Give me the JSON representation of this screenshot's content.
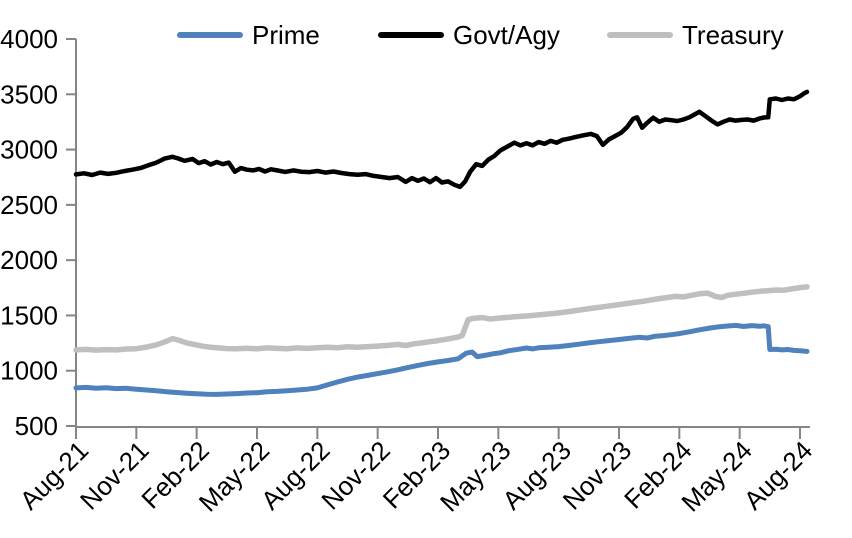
{
  "legend": {
    "items": [
      {
        "label": "Prime",
        "color": "#4F81BD"
      },
      {
        "label": "Govt/Agy",
        "color": "#000000"
      },
      {
        "label": "Treasury",
        "color": "#BFBFBF"
      }
    ]
  },
  "chart_data": {
    "type": "line",
    "title": "",
    "xlabel": "",
    "ylabel": "",
    "x_unit": "months since Aug-2021",
    "x_tick_positions": [
      0,
      3,
      6,
      9,
      12,
      15,
      18,
      21,
      24,
      27,
      30,
      33,
      36
    ],
    "x_tick_labels": [
      "Aug-21",
      "Nov-21",
      "Feb-22",
      "May-22",
      "Aug-22",
      "Nov-22",
      "Feb-23",
      "May-23",
      "Aug-23",
      "Nov-23",
      "Feb-24",
      "May-24",
      "Aug-24"
    ],
    "ylim": [
      500,
      4000
    ],
    "y_ticks": [
      500,
      1000,
      1500,
      2000,
      2500,
      3000,
      3500,
      4000
    ],
    "grid": false,
    "legend_position": "top",
    "axis_color": "#858585",
    "series": [
      {
        "name": "Treasury",
        "color": "#BFBFBF",
        "width": 5.5,
        "points": [
          [
            0,
            1188
          ],
          [
            0.5,
            1193
          ],
          [
            1,
            1186
          ],
          [
            1.5,
            1191
          ],
          [
            2,
            1188
          ],
          [
            2.5,
            1196
          ],
          [
            3,
            1199
          ],
          [
            3.5,
            1214
          ],
          [
            4,
            1234
          ],
          [
            4.5,
            1266
          ],
          [
            4.8,
            1290
          ],
          [
            5.1,
            1276
          ],
          [
            5.5,
            1252
          ],
          [
            5.9,
            1236
          ],
          [
            6.3,
            1222
          ],
          [
            6.7,
            1212
          ],
          [
            7.1,
            1206
          ],
          [
            7.5,
            1200
          ],
          [
            8,
            1198
          ],
          [
            8.5,
            1203
          ],
          [
            9,
            1198
          ],
          [
            9.5,
            1206
          ],
          [
            10,
            1202
          ],
          [
            10.5,
            1198
          ],
          [
            11,
            1206
          ],
          [
            11.5,
            1202
          ],
          [
            12,
            1208
          ],
          [
            12.5,
            1213
          ],
          [
            13,
            1208
          ],
          [
            13.5,
            1216
          ],
          [
            14,
            1212
          ],
          [
            14.5,
            1218
          ],
          [
            15,
            1223
          ],
          [
            15.5,
            1229
          ],
          [
            16,
            1238
          ],
          [
            16.4,
            1228
          ],
          [
            16.8,
            1243
          ],
          [
            17.2,
            1252
          ],
          [
            17.6,
            1262
          ],
          [
            18,
            1272
          ],
          [
            18.5,
            1288
          ],
          [
            19,
            1305
          ],
          [
            19.2,
            1318
          ],
          [
            19.5,
            1462
          ],
          [
            19.8,
            1475
          ],
          [
            20.2,
            1480
          ],
          [
            20.6,
            1468
          ],
          [
            21,
            1476
          ],
          [
            21.4,
            1481
          ],
          [
            21.8,
            1488
          ],
          [
            22.2,
            1492
          ],
          [
            22.6,
            1498
          ],
          [
            23,
            1505
          ],
          [
            23.4,
            1512
          ],
          [
            23.8,
            1518
          ],
          [
            24.2,
            1527
          ],
          [
            24.6,
            1536
          ],
          [
            25,
            1548
          ],
          [
            25.4,
            1558
          ],
          [
            25.8,
            1568
          ],
          [
            26.2,
            1578
          ],
          [
            26.6,
            1588
          ],
          [
            27,
            1598
          ],
          [
            27.4,
            1608
          ],
          [
            27.8,
            1618
          ],
          [
            28.2,
            1628
          ],
          [
            28.6,
            1640
          ],
          [
            29,
            1652
          ],
          [
            29.4,
            1662
          ],
          [
            29.8,
            1672
          ],
          [
            30.2,
            1668
          ],
          [
            30.6,
            1682
          ],
          [
            31,
            1696
          ],
          [
            31.4,
            1702
          ],
          [
            31.8,
            1672
          ],
          [
            32.1,
            1662
          ],
          [
            32.4,
            1682
          ],
          [
            32.8,
            1692
          ],
          [
            33.2,
            1700
          ],
          [
            33.6,
            1710
          ],
          [
            34,
            1718
          ],
          [
            34.4,
            1724
          ],
          [
            34.8,
            1730
          ],
          [
            35.2,
            1728
          ],
          [
            35.6,
            1740
          ],
          [
            36,
            1752
          ],
          [
            36.35,
            1758
          ]
        ]
      },
      {
        "name": "Prime",
        "color": "#4F81BD",
        "width": 5,
        "points": [
          [
            0,
            845
          ],
          [
            0.5,
            849
          ],
          [
            1,
            842
          ],
          [
            1.5,
            846
          ],
          [
            2,
            838
          ],
          [
            2.5,
            841
          ],
          [
            3,
            833
          ],
          [
            3.5,
            826
          ],
          [
            4,
            818
          ],
          [
            4.5,
            810
          ],
          [
            5,
            803
          ],
          [
            5.5,
            797
          ],
          [
            6,
            792
          ],
          [
            6.5,
            788
          ],
          [
            7,
            786
          ],
          [
            7.5,
            789
          ],
          [
            8,
            793
          ],
          [
            8.5,
            798
          ],
          [
            9,
            801
          ],
          [
            9.5,
            809
          ],
          [
            10,
            813
          ],
          [
            10.5,
            819
          ],
          [
            11,
            826
          ],
          [
            11.5,
            833
          ],
          [
            12,
            845
          ],
          [
            12.5,
            872
          ],
          [
            13,
            898
          ],
          [
            13.5,
            922
          ],
          [
            14,
            942
          ],
          [
            14.5,
            958
          ],
          [
            15,
            974
          ],
          [
            15.5,
            990
          ],
          [
            16,
            1008
          ],
          [
            16.5,
            1028
          ],
          [
            17,
            1048
          ],
          [
            17.5,
            1065
          ],
          [
            18,
            1080
          ],
          [
            18.5,
            1092
          ],
          [
            19,
            1108
          ],
          [
            19.4,
            1158
          ],
          [
            19.7,
            1168
          ],
          [
            19.95,
            1128
          ],
          [
            20.3,
            1138
          ],
          [
            20.7,
            1152
          ],
          [
            21.1,
            1162
          ],
          [
            21.5,
            1180
          ],
          [
            22,
            1194
          ],
          [
            22.4,
            1205
          ],
          [
            22.7,
            1197
          ],
          [
            23,
            1207
          ],
          [
            23.5,
            1212
          ],
          [
            24,
            1218
          ],
          [
            24.5,
            1228
          ],
          [
            25,
            1240
          ],
          [
            25.5,
            1252
          ],
          [
            26,
            1262
          ],
          [
            26.5,
            1272
          ],
          [
            27,
            1282
          ],
          [
            27.5,
            1292
          ],
          [
            28,
            1302
          ],
          [
            28.4,
            1296
          ],
          [
            28.8,
            1312
          ],
          [
            29.2,
            1318
          ],
          [
            29.6,
            1326
          ],
          [
            30,
            1336
          ],
          [
            30.5,
            1352
          ],
          [
            31,
            1370
          ],
          [
            31.5,
            1385
          ],
          [
            32,
            1398
          ],
          [
            32.4,
            1404
          ],
          [
            32.8,
            1410
          ],
          [
            33.2,
            1400
          ],
          [
            33.6,
            1408
          ],
          [
            34,
            1402
          ],
          [
            34.2,
            1406
          ],
          [
            34.42,
            1398
          ],
          [
            34.5,
            1192
          ],
          [
            34.8,
            1194
          ],
          [
            35.1,
            1188
          ],
          [
            35.4,
            1192
          ],
          [
            35.7,
            1184
          ],
          [
            36,
            1180
          ],
          [
            36.35,
            1175
          ]
        ]
      },
      {
        "name": "Govt/Agy",
        "color": "#000000",
        "width": 4.5,
        "points": [
          [
            0,
            2775
          ],
          [
            0.4,
            2785
          ],
          [
            0.8,
            2770
          ],
          [
            1.2,
            2792
          ],
          [
            1.6,
            2780
          ],
          [
            2,
            2790
          ],
          [
            2.4,
            2805
          ],
          [
            2.8,
            2818
          ],
          [
            3.2,
            2832
          ],
          [
            3.6,
            2858
          ],
          [
            4,
            2882
          ],
          [
            4.4,
            2918
          ],
          [
            4.8,
            2935
          ],
          [
            5.1,
            2918
          ],
          [
            5.4,
            2898
          ],
          [
            5.8,
            2915
          ],
          [
            6.1,
            2878
          ],
          [
            6.4,
            2895
          ],
          [
            6.7,
            2865
          ],
          [
            7,
            2888
          ],
          [
            7.3,
            2868
          ],
          [
            7.6,
            2882
          ],
          [
            7.9,
            2800
          ],
          [
            8.2,
            2832
          ],
          [
            8.5,
            2818
          ],
          [
            8.8,
            2812
          ],
          [
            9.1,
            2825
          ],
          [
            9.4,
            2802
          ],
          [
            9.7,
            2822
          ],
          [
            10,
            2812
          ],
          [
            10.4,
            2798
          ],
          [
            10.8,
            2812
          ],
          [
            11.2,
            2800
          ],
          [
            11.6,
            2796
          ],
          [
            12,
            2806
          ],
          [
            12.4,
            2792
          ],
          [
            12.8,
            2802
          ],
          [
            13.2,
            2788
          ],
          [
            13.6,
            2778
          ],
          [
            14,
            2772
          ],
          [
            14.4,
            2778
          ],
          [
            14.8,
            2762
          ],
          [
            15.2,
            2752
          ],
          [
            15.6,
            2742
          ],
          [
            16,
            2752
          ],
          [
            16.4,
            2708
          ],
          [
            16.7,
            2742
          ],
          [
            17,
            2718
          ],
          [
            17.3,
            2738
          ],
          [
            17.6,
            2705
          ],
          [
            17.9,
            2742
          ],
          [
            18.2,
            2702
          ],
          [
            18.5,
            2712
          ],
          [
            18.8,
            2682
          ],
          [
            19.1,
            2662
          ],
          [
            19.35,
            2712
          ],
          [
            19.6,
            2800
          ],
          [
            19.9,
            2868
          ],
          [
            20.2,
            2852
          ],
          [
            20.5,
            2908
          ],
          [
            20.8,
            2942
          ],
          [
            21.1,
            2992
          ],
          [
            21.5,
            3032
          ],
          [
            21.8,
            3062
          ],
          [
            22.1,
            3038
          ],
          [
            22.4,
            3058
          ],
          [
            22.7,
            3038
          ],
          [
            23,
            3068
          ],
          [
            23.3,
            3052
          ],
          [
            23.6,
            3078
          ],
          [
            23.9,
            3062
          ],
          [
            24.2,
            3088
          ],
          [
            24.5,
            3098
          ],
          [
            24.8,
            3112
          ],
          [
            25.2,
            3128
          ],
          [
            25.6,
            3142
          ],
          [
            25.9,
            3122
          ],
          [
            26.2,
            3042
          ],
          [
            26.5,
            3092
          ],
          [
            26.8,
            3122
          ],
          [
            27.1,
            3152
          ],
          [
            27.4,
            3202
          ],
          [
            27.7,
            3278
          ],
          [
            27.9,
            3292
          ],
          [
            28.15,
            3198
          ],
          [
            28.4,
            3242
          ],
          [
            28.7,
            3288
          ],
          [
            29,
            3252
          ],
          [
            29.3,
            3272
          ],
          [
            29.6,
            3266
          ],
          [
            29.9,
            3258
          ],
          [
            30.2,
            3272
          ],
          [
            30.5,
            3292
          ],
          [
            30.8,
            3322
          ],
          [
            31,
            3342
          ],
          [
            31.3,
            3302
          ],
          [
            31.6,
            3262
          ],
          [
            31.9,
            3228
          ],
          [
            32.2,
            3252
          ],
          [
            32.5,
            3272
          ],
          [
            32.8,
            3262
          ],
          [
            33.1,
            3268
          ],
          [
            33.4,
            3272
          ],
          [
            33.7,
            3262
          ],
          [
            34,
            3282
          ],
          [
            34.2,
            3290
          ],
          [
            34.42,
            3292
          ],
          [
            34.5,
            3455
          ],
          [
            34.8,
            3462
          ],
          [
            35.1,
            3448
          ],
          [
            35.4,
            3462
          ],
          [
            35.7,
            3455
          ],
          [
            36,
            3482
          ],
          [
            36.2,
            3508
          ],
          [
            36.35,
            3522
          ]
        ]
      }
    ]
  }
}
